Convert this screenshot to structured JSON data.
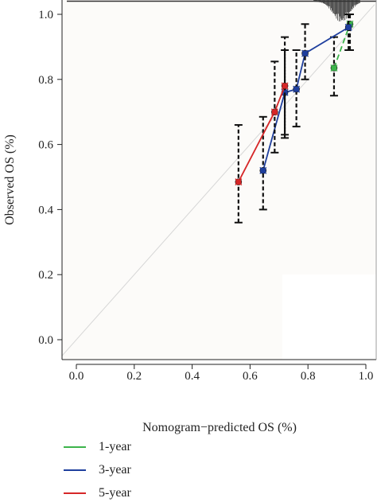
{
  "chart_data": {
    "type": "calibration",
    "xlabel": "Nomogram−predicted OS (%)",
    "ylabel": "Observed OS (%)",
    "xlim": [
      -0.05,
      1.03
    ],
    "ylim": [
      -0.07,
      1.03
    ],
    "xticks": [
      "0.0",
      "0.2",
      "0.4",
      "0.6",
      "0.8",
      "1.0"
    ],
    "yticks": [
      "0.0",
      "0.2",
      "0.4",
      "0.6",
      "0.8",
      "1.0"
    ],
    "reference_line": "ideal diagonal y = x",
    "legend_position": "bottom-left",
    "series": [
      {
        "name": "1-year",
        "color": "#3cb44b",
        "points": [
          {
            "x": 0.89,
            "y": 0.835,
            "lo": 0.75,
            "hi": 0.93
          },
          {
            "x": 0.945,
            "y": 0.97,
            "lo": 0.89,
            "hi": 1.0
          }
        ]
      },
      {
        "name": "3-year",
        "color": "#1f3f9e",
        "points": [
          {
            "x": 0.645,
            "y": 0.52,
            "lo": 0.4,
            "hi": 0.685
          },
          {
            "x": 0.72,
            "y": 0.76,
            "lo": 0.62,
            "hi": 0.89
          },
          {
            "x": 0.76,
            "y": 0.77,
            "lo": 0.655,
            "hi": 0.89
          },
          {
            "x": 0.79,
            "y": 0.88,
            "lo": 0.8,
            "hi": 0.97
          },
          {
            "x": 0.94,
            "y": 0.96,
            "lo": 0.89,
            "hi": 1.0
          }
        ]
      },
      {
        "name": "5-year",
        "color": "#d62728",
        "points": [
          {
            "x": 0.56,
            "y": 0.485,
            "lo": 0.36,
            "hi": 0.66
          },
          {
            "x": 0.685,
            "y": 0.7,
            "lo": 0.575,
            "hi": 0.855
          },
          {
            "x": 0.72,
            "y": 0.78,
            "lo": 0.63,
            "hi": 0.93
          }
        ]
      }
    ]
  }
}
